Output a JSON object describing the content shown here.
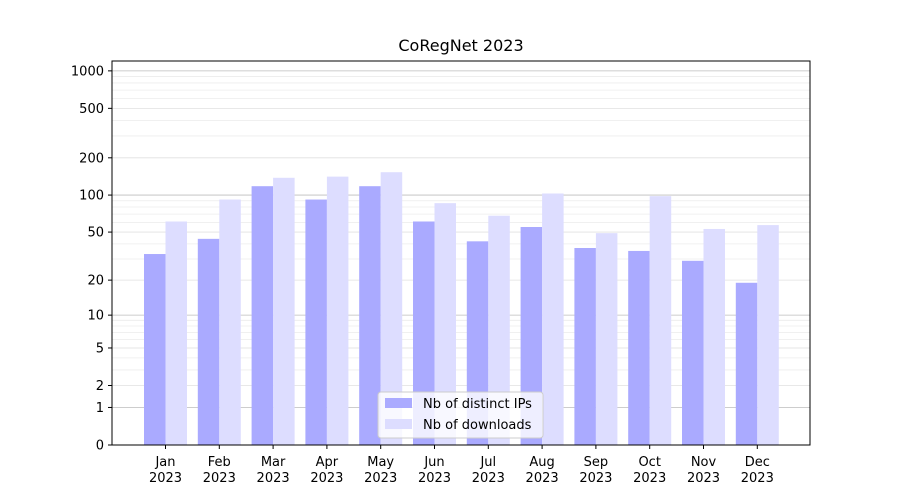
{
  "chart_data": {
    "type": "bar",
    "title": "CoRegNet 2023",
    "xlabel": "",
    "ylabel": "",
    "y_scale": "log(1+y)",
    "ylim": [
      0,
      1200
    ],
    "y_ticks": [
      0,
      1,
      2,
      5,
      10,
      20,
      50,
      100,
      200,
      500,
      1000
    ],
    "grid": true,
    "legend_position": "bottom-center",
    "categories": [
      "Jan\n2023",
      "Feb\n2023",
      "Mar\n2023",
      "Apr\n2023",
      "May\n2023",
      "Jun\n2023",
      "Jul\n2023",
      "Aug\n2023",
      "Sep\n2023",
      "Oct\n2023",
      "Nov\n2023",
      "Dec\n2023"
    ],
    "series": [
      {
        "name": "Nb of distinct IPs",
        "color": "#aaaaff",
        "values": [
          33,
          44,
          118,
          92,
          118,
          61,
          42,
          55,
          37,
          35,
          29,
          19
        ]
      },
      {
        "name": "Nb of downloads",
        "color": "#ddddff",
        "values": [
          61,
          92,
          138,
          141,
          153,
          86,
          68,
          103,
          49,
          98,
          53,
          57
        ]
      }
    ]
  }
}
